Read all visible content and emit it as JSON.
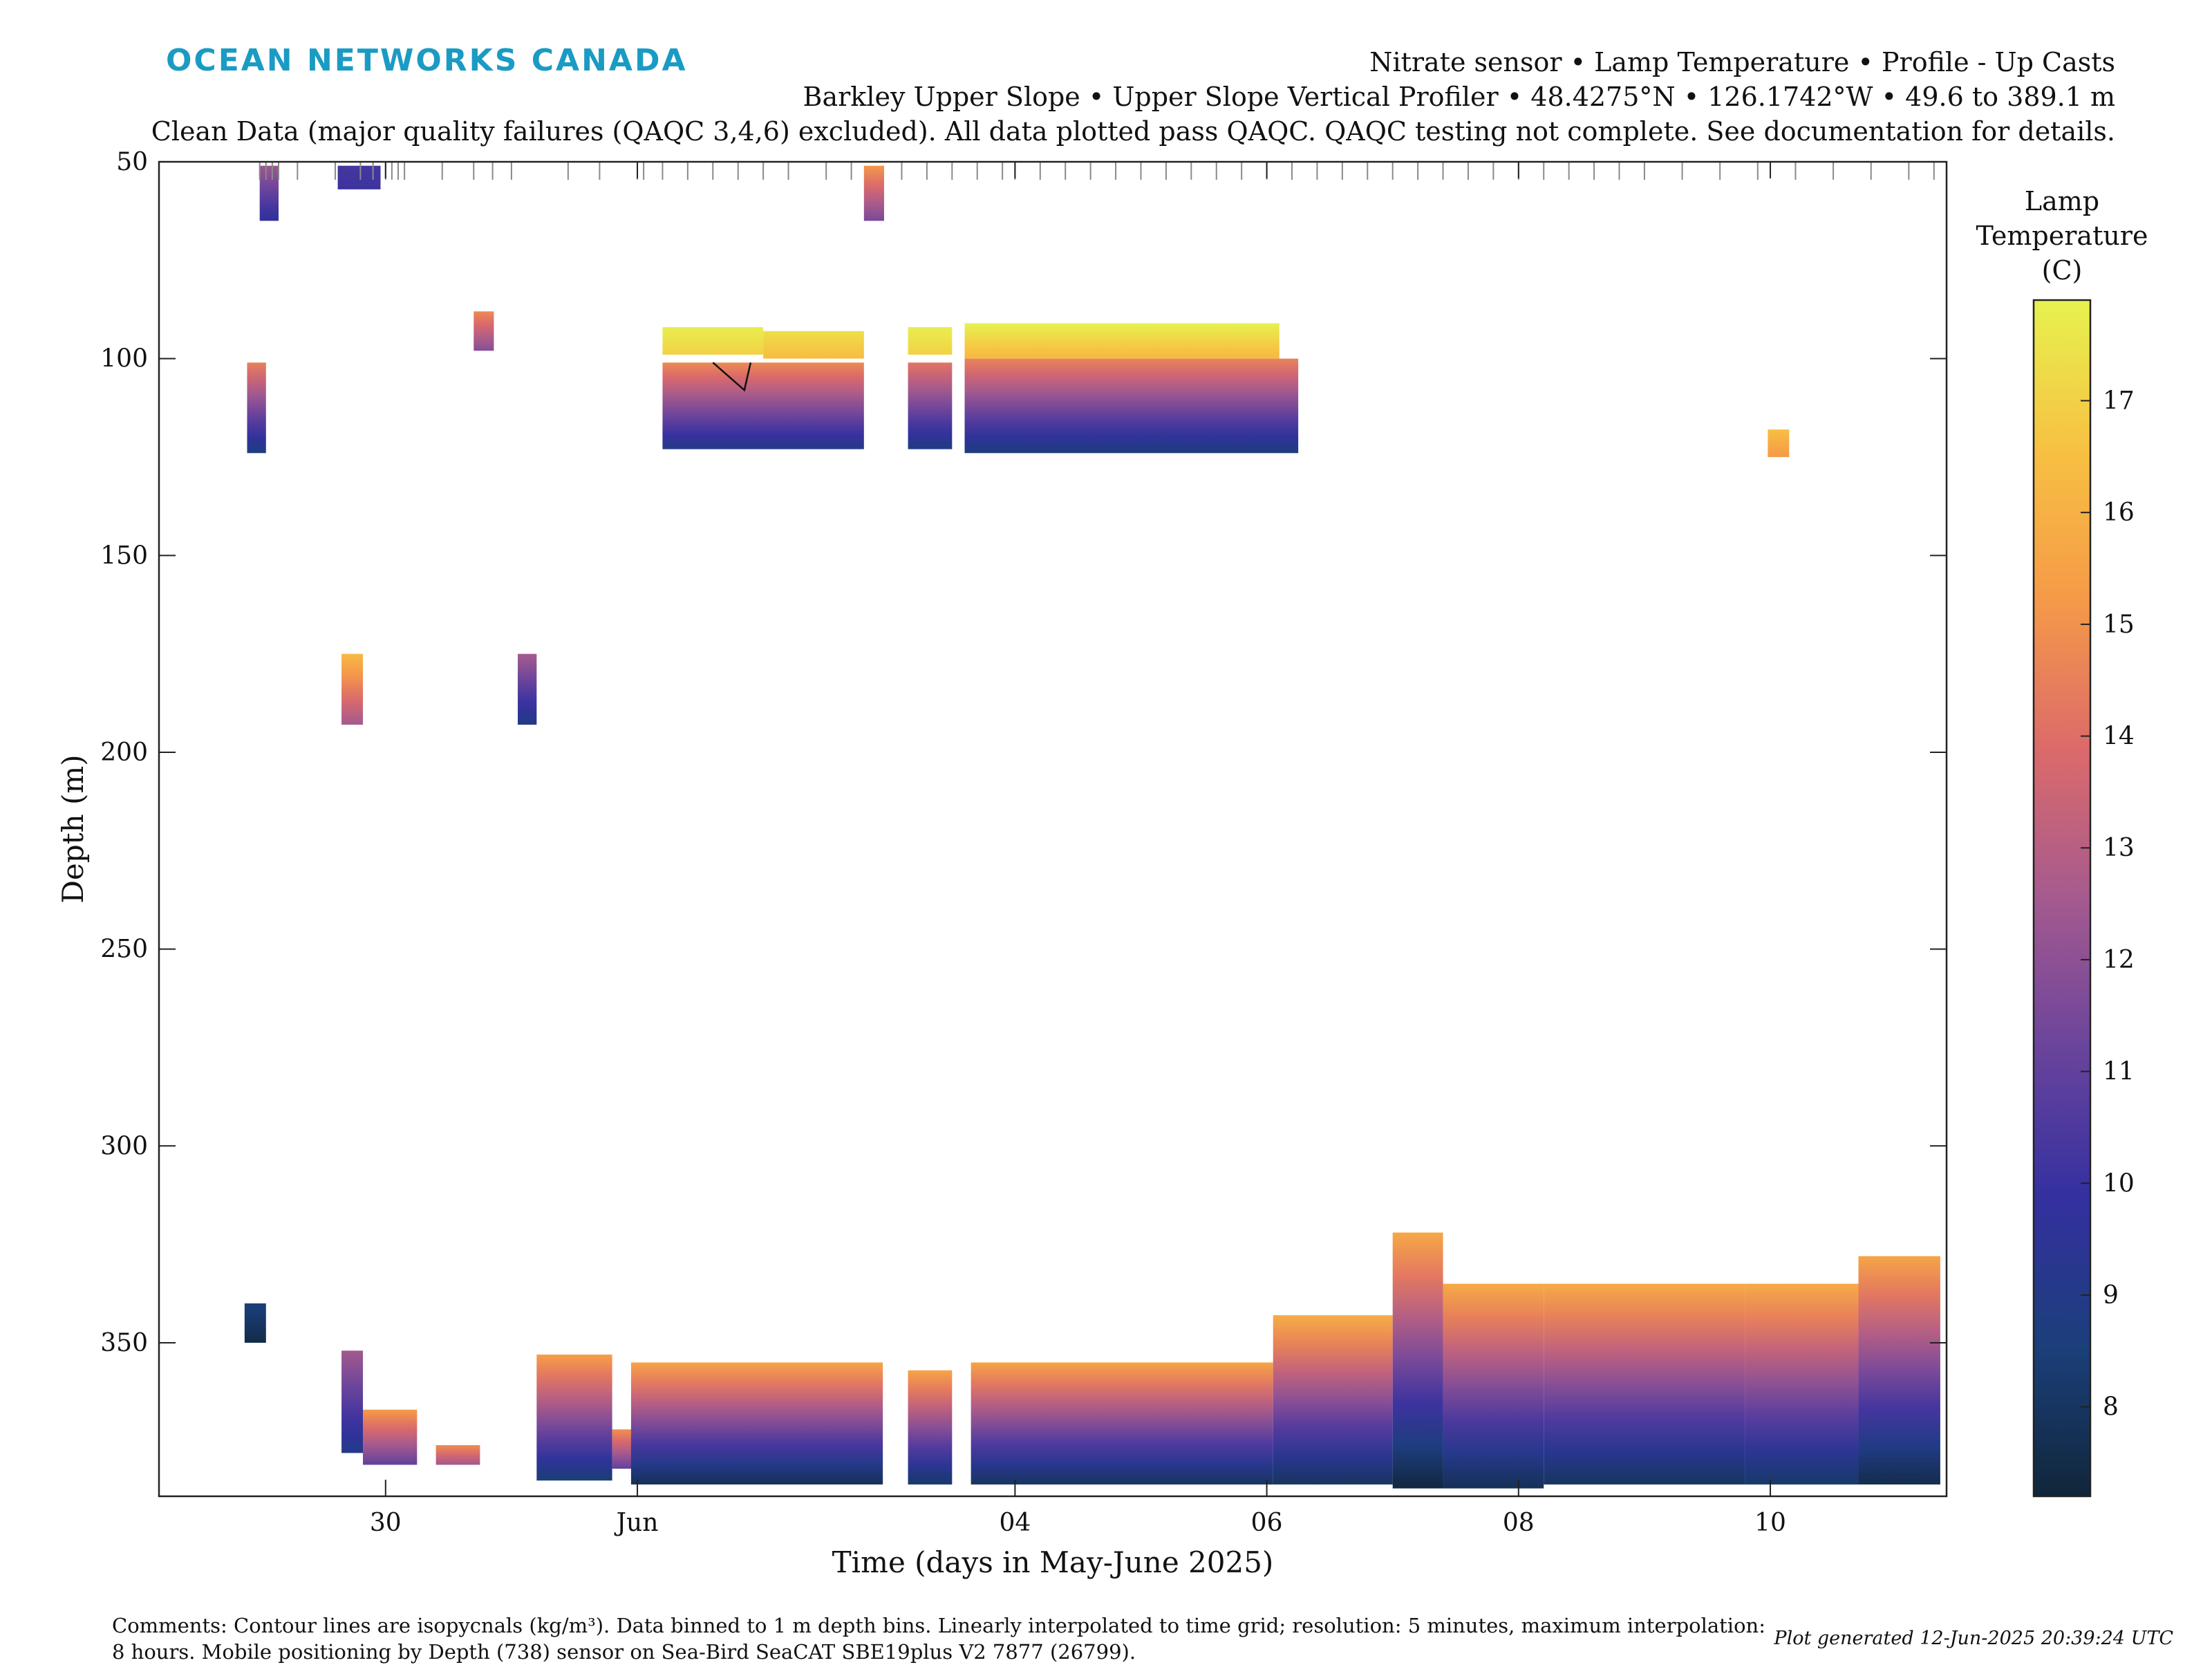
{
  "header": {
    "logo": "OCEAN NETWORKS CANADA",
    "title_line1": "Nitrate sensor • Lamp Temperature • Profile - Up Casts",
    "title_line2": "Barkley Upper Slope • Upper Slope Vertical Profiler • 48.4275°N • 126.1742°W • 49.6 to 389.1 m",
    "title_line3": "Clean Data (major quality failures (QAQC 3,4,6) excluded). All data plotted pass QAQC. QAQC testing not complete. See documentation for details."
  },
  "footer": {
    "comments_line1": "Comments: Contour lines are isopycnals (kg/m³). Data binned to 1 m depth bins. Linearly interpolated to time grid; resolution: 5 minutes, maximum interpolation:",
    "comments_line2": "8 hours. Mobile positioning by Depth (738) sensor on Sea-Bird SeaCAT SBE19plus V2 7877 (26799).",
    "generated": "Plot generated 12-Jun-2025 20:39:24 UTC"
  },
  "colors": {
    "logo": "#1a9bc4",
    "colormap": [
      "#10263a",
      "#1b3f7a",
      "#3430a0",
      "#6a449c",
      "#a55a8f",
      "#dc6a6a",
      "#f59a48",
      "#f7c142",
      "#e7f24f"
    ]
  },
  "chart_data": {
    "type": "heatmap",
    "xlabel": "Time (days in May-June 2025)",
    "ylabel": "Depth (m)",
    "x_unit": "days since 2025-05-29 00:00",
    "xlim": [
      28.2,
      42.4
    ],
    "ylim": [
      50,
      389
    ],
    "y_reversed": true,
    "x_ticks": [
      {
        "value": 30,
        "label": "30"
      },
      {
        "value": 32,
        "label": "Jun"
      },
      {
        "value": 35,
        "label": "04"
      },
      {
        "value": 37,
        "label": "06"
      },
      {
        "value": 39,
        "label": "08"
      },
      {
        "value": 41,
        "label": "10"
      }
    ],
    "y_ticks": [
      50,
      100,
      150,
      200,
      250,
      300,
      350
    ],
    "colorbar": {
      "label": [
        "Lamp",
        "Temperature",
        "(C)"
      ],
      "range": [
        7.2,
        17.9
      ],
      "ticks": [
        8,
        9,
        10,
        11,
        12,
        13,
        14,
        15,
        16,
        17
      ]
    },
    "cast_marks": [
      29.0,
      29.05,
      29.1,
      29.15,
      29.3,
      29.6,
      29.8,
      29.9,
      30.0,
      30.05,
      30.1,
      30.15,
      30.45,
      30.7,
      30.85,
      31.0,
      31.45,
      31.7,
      32.0,
      32.05,
      32.2,
      32.4,
      32.6,
      32.8,
      33.0,
      33.2,
      33.5,
      33.7,
      34.1,
      34.3,
      34.5,
      34.7,
      34.9,
      35.0,
      35.2,
      35.4,
      35.6,
      35.8,
      36.0,
      36.2,
      36.4,
      36.6,
      36.8,
      37.0,
      37.2,
      37.4,
      37.6,
      37.8,
      38.0,
      38.2,
      38.4,
      38.6,
      38.8,
      39.0,
      39.2,
      39.4,
      39.6,
      39.8,
      40.0,
      40.3,
      40.6,
      40.9,
      41.2,
      41.5,
      41.8,
      42.1,
      42.3
    ],
    "patches": [
      {
        "x0": 29.0,
        "x1": 29.15,
        "top": 51,
        "bottom": 65,
        "t_top": 12.4,
        "t_bottom": 9.6
      },
      {
        "x0": 29.62,
        "x1": 29.96,
        "top": 51,
        "bottom": 57,
        "t_top": 10.3,
        "t_bottom": 10.1
      },
      {
        "x0": 33.8,
        "x1": 33.96,
        "top": 51,
        "bottom": 65,
        "t_top": 15.2,
        "t_bottom": 11.5
      },
      {
        "x0": 30.7,
        "x1": 30.86,
        "top": 88,
        "bottom": 98,
        "t_top": 14.8,
        "t_bottom": 11.8
      },
      {
        "x0": 28.9,
        "x1": 29.05,
        "top": 101,
        "bottom": 124,
        "t_top": 14.5,
        "t_bottom": 8.7
      },
      {
        "x0": 32.2,
        "x1": 33.0,
        "top": 92,
        "bottom": 99,
        "t_top": 17.8,
        "t_bottom": 17.0
      },
      {
        "x0": 33.0,
        "x1": 33.8,
        "top": 93,
        "bottom": 100,
        "t_top": 17.4,
        "t_bottom": 16.4
      },
      {
        "x0": 32.2,
        "x1": 33.8,
        "top": 101,
        "bottom": 123,
        "t_top": 14.8,
        "t_bottom": 9.0
      },
      {
        "x0": 34.15,
        "x1": 34.5,
        "top": 92,
        "bottom": 99,
        "t_top": 17.8,
        "t_bottom": 17.0
      },
      {
        "x0": 34.15,
        "x1": 34.5,
        "top": 101,
        "bottom": 123,
        "t_top": 14.2,
        "t_bottom": 8.8
      },
      {
        "x0": 34.6,
        "x1": 37.1,
        "top": 91,
        "bottom": 100,
        "t_top": 17.9,
        "t_bottom": 16.2
      },
      {
        "x0": 34.6,
        "x1": 37.25,
        "top": 100,
        "bottom": 124,
        "t_top": 14.6,
        "t_bottom": 8.6
      },
      {
        "x0": 40.98,
        "x1": 41.15,
        "top": 118,
        "bottom": 125,
        "t_top": 16.5,
        "t_bottom": 15.2
      },
      {
        "x0": 29.65,
        "x1": 29.82,
        "top": 175,
        "bottom": 193,
        "t_top": 16.3,
        "t_bottom": 12.5
      },
      {
        "x0": 31.05,
        "x1": 31.2,
        "top": 175,
        "bottom": 193,
        "t_top": 12.6,
        "t_bottom": 8.9
      },
      {
        "x0": 28.88,
        "x1": 29.05,
        "top": 340,
        "bottom": 350,
        "t_top": 8.6,
        "t_bottom": 7.5
      },
      {
        "x0": 29.65,
        "x1": 29.82,
        "top": 352,
        "bottom": 378,
        "t_top": 12.5,
        "t_bottom": 9.0
      },
      {
        "x0": 29.82,
        "x1": 30.25,
        "top": 367,
        "bottom": 381,
        "t_top": 15.3,
        "t_bottom": 11.0
      },
      {
        "x0": 30.4,
        "x1": 30.75,
        "top": 376,
        "bottom": 381,
        "t_top": 14.9,
        "t_bottom": 12.5
      },
      {
        "x0": 31.2,
        "x1": 31.8,
        "top": 353,
        "bottom": 385,
        "t_top": 15.4,
        "t_bottom": 8.5
      },
      {
        "x0": 31.8,
        "x1": 32.05,
        "top": 372,
        "bottom": 382,
        "t_top": 15.0,
        "t_bottom": 11.0
      },
      {
        "x0": 31.95,
        "x1": 33.95,
        "top": 355,
        "bottom": 386,
        "t_top": 15.6,
        "t_bottom": 7.8
      },
      {
        "x0": 34.15,
        "x1": 34.5,
        "top": 357,
        "bottom": 386,
        "t_top": 15.6,
        "t_bottom": 8.2
      },
      {
        "x0": 34.65,
        "x1": 37.05,
        "top": 355,
        "bottom": 386,
        "t_top": 15.6,
        "t_bottom": 8.0
      },
      {
        "x0": 37.05,
        "x1": 38.0,
        "top": 343,
        "bottom": 386,
        "t_top": 15.9,
        "t_bottom": 8.0
      },
      {
        "x0": 38.0,
        "x1": 38.4,
        "top": 322,
        "bottom": 387,
        "t_top": 15.7,
        "t_bottom": 7.3
      },
      {
        "x0": 38.4,
        "x1": 39.2,
        "top": 335,
        "bottom": 387,
        "t_top": 15.8,
        "t_bottom": 7.8
      },
      {
        "x0": 39.2,
        "x1": 40.8,
        "top": 335,
        "bottom": 386,
        "t_top": 15.8,
        "t_bottom": 8.0
      },
      {
        "x0": 40.8,
        "x1": 41.7,
        "top": 335,
        "bottom": 386,
        "t_top": 15.8,
        "t_bottom": 8.2
      },
      {
        "x0": 41.7,
        "x1": 42.35,
        "top": 328,
        "bottom": 386,
        "t_top": 15.6,
        "t_bottom": 7.6
      }
    ],
    "contour_lines": [
      [
        [
          32.6,
          101
        ],
        [
          32.85,
          108
        ],
        [
          32.9,
          101
        ]
      ]
    ]
  }
}
